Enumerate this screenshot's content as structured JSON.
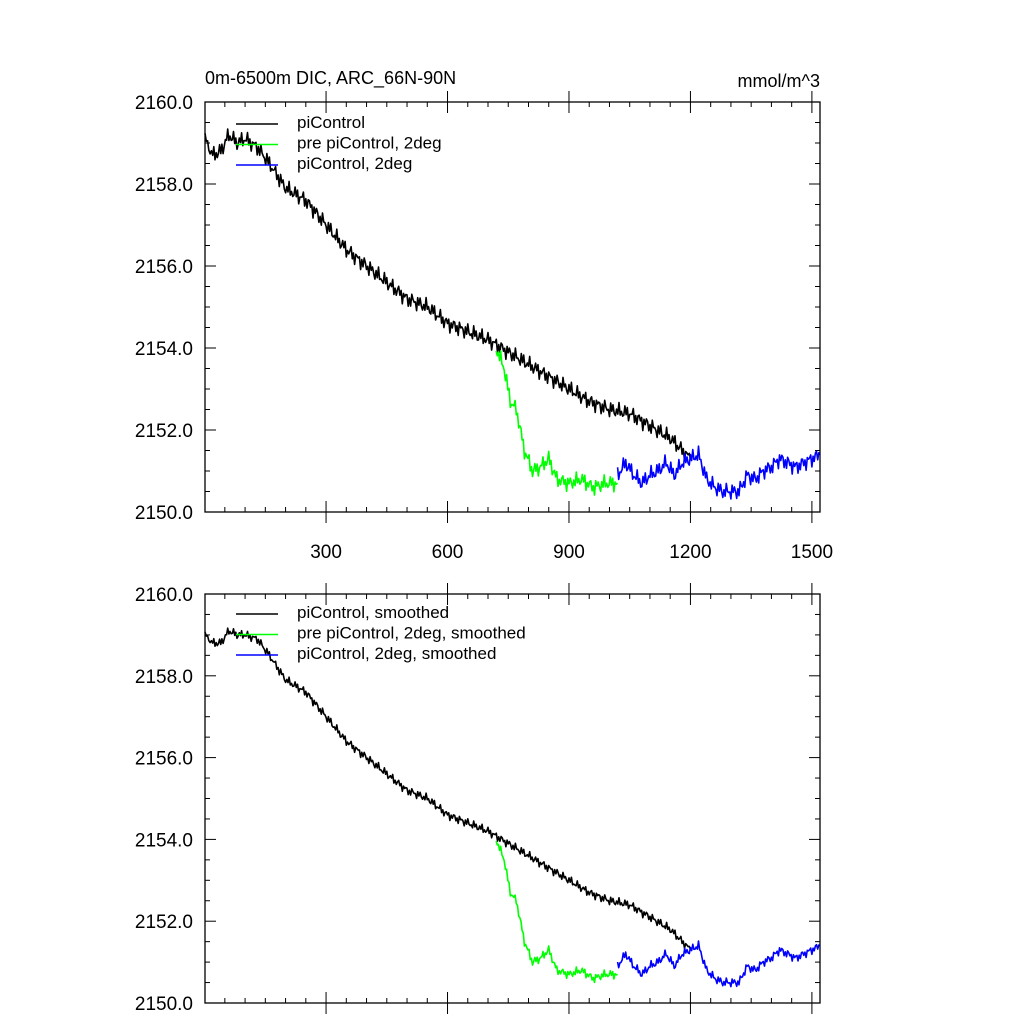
{
  "figure": {
    "title": "0m-6500m DIC, ARC_66N-90N",
    "units": "mmol/m^3"
  },
  "chart_data": [
    {
      "type": "line",
      "title": "0m-6500m DIC, ARC_66N-90N",
      "units": "mmol/m^3",
      "xlim": [
        1,
        1520
      ],
      "ylim": [
        2150.0,
        2160.0
      ],
      "xticks": [
        300,
        600,
        900,
        1200,
        1500
      ],
      "xtick_labels": [
        "300",
        "600",
        "900",
        "1200",
        "1500"
      ],
      "yticks": [
        2150.0,
        2152.0,
        2154.0,
        2156.0,
        2158.0,
        2160.0
      ],
      "ytick_labels": [
        "2150.0",
        "2152.0",
        "2154.0",
        "2156.0",
        "2158.0",
        "2160.0"
      ],
      "legend_position": "top-left",
      "series": [
        {
          "name": "piControl",
          "color": "#000000",
          "x": [
            1,
            20,
            40,
            60,
            80,
            100,
            130,
            160,
            200,
            250,
            300,
            350,
            400,
            450,
            500,
            550,
            600,
            650,
            700,
            750,
            800,
            850,
            900,
            950,
            1000,
            1050,
            1100,
            1150,
            1200
          ],
          "y": [
            2159.1,
            2158.7,
            2158.8,
            2159.2,
            2159.0,
            2159.1,
            2158.9,
            2158.5,
            2157.9,
            2157.6,
            2157.0,
            2156.4,
            2156.0,
            2155.6,
            2155.2,
            2155.0,
            2154.6,
            2154.4,
            2154.2,
            2153.9,
            2153.6,
            2153.3,
            2153.0,
            2152.7,
            2152.5,
            2152.4,
            2152.1,
            2151.8,
            2151.3
          ]
        },
        {
          "name": "pre piControl, 2deg",
          "color": "#00ff00",
          "x": [
            720,
            740,
            755,
            770,
            790,
            810,
            830,
            850,
            870,
            900,
            930,
            960,
            990,
            1020
          ],
          "y": [
            2154.0,
            2153.5,
            2152.7,
            2152.5,
            2151.5,
            2151.0,
            2151.1,
            2151.3,
            2150.8,
            2150.7,
            2150.8,
            2150.6,
            2150.7,
            2150.7
          ]
        },
        {
          "name": "piControl, 2deg",
          "color": "#0000ff",
          "x": [
            1020,
            1040,
            1060,
            1080,
            1100,
            1120,
            1140,
            1160,
            1180,
            1200,
            1220,
            1240,
            1260,
            1280,
            1300,
            1320,
            1340,
            1360,
            1380,
            1400,
            1420,
            1440,
            1460,
            1480,
            1500,
            1520
          ],
          "y": [
            2150.9,
            2151.2,
            2150.9,
            2150.7,
            2150.9,
            2151.0,
            2151.2,
            2150.9,
            2151.2,
            2151.3,
            2151.4,
            2150.8,
            2150.6,
            2150.5,
            2150.5,
            2150.5,
            2150.9,
            2150.8,
            2151.0,
            2151.1,
            2151.3,
            2151.2,
            2151.1,
            2151.2,
            2151.3,
            2151.4
          ]
        }
      ]
    },
    {
      "type": "line",
      "xlim": [
        1,
        1520
      ],
      "ylim": [
        2150.0,
        2160.0
      ],
      "yticks": [
        2150.0,
        2152.0,
        2154.0,
        2156.0,
        2158.0,
        2160.0
      ],
      "ytick_labels": [
        "2150.0",
        "2152.0",
        "2154.0",
        "2156.0",
        "2158.0",
        "2160.0"
      ],
      "legend_position": "top-left",
      "series": [
        {
          "name": "piControl, smoothed",
          "color": "#000000",
          "x": [
            1,
            20,
            40,
            60,
            80,
            100,
            130,
            160,
            200,
            250,
            300,
            350,
            400,
            450,
            500,
            550,
            600,
            650,
            700,
            750,
            800,
            850,
            900,
            950,
            1000,
            1050,
            1100,
            1150,
            1200
          ],
          "y": [
            2159.0,
            2158.8,
            2158.8,
            2159.1,
            2159.0,
            2159.0,
            2158.9,
            2158.5,
            2157.9,
            2157.6,
            2157.0,
            2156.4,
            2156.0,
            2155.6,
            2155.2,
            2155.0,
            2154.6,
            2154.4,
            2154.2,
            2153.9,
            2153.6,
            2153.3,
            2153.0,
            2152.7,
            2152.5,
            2152.4,
            2152.1,
            2151.8,
            2151.3
          ]
        },
        {
          "name": "pre piControl, 2deg, smoothed",
          "color": "#00ff00",
          "x": [
            720,
            740,
            755,
            770,
            790,
            810,
            830,
            850,
            870,
            900,
            930,
            960,
            990,
            1020
          ],
          "y": [
            2154.0,
            2153.5,
            2152.7,
            2152.5,
            2151.5,
            2151.0,
            2151.1,
            2151.3,
            2150.8,
            2150.7,
            2150.8,
            2150.6,
            2150.7,
            2150.7
          ]
        },
        {
          "name": "piControl, 2deg, smoothed",
          "color": "#0000ff",
          "x": [
            1020,
            1040,
            1060,
            1080,
            1100,
            1120,
            1140,
            1160,
            1180,
            1200,
            1220,
            1240,
            1260,
            1280,
            1300,
            1320,
            1340,
            1360,
            1380,
            1400,
            1420,
            1440,
            1460,
            1480,
            1500,
            1520
          ],
          "y": [
            2150.9,
            2151.2,
            2150.9,
            2150.7,
            2150.9,
            2151.0,
            2151.2,
            2150.9,
            2151.2,
            2151.3,
            2151.4,
            2150.8,
            2150.6,
            2150.5,
            2150.5,
            2150.5,
            2150.9,
            2150.8,
            2151.0,
            2151.1,
            2151.3,
            2151.2,
            2151.1,
            2151.2,
            2151.3,
            2151.4
          ]
        }
      ]
    }
  ]
}
